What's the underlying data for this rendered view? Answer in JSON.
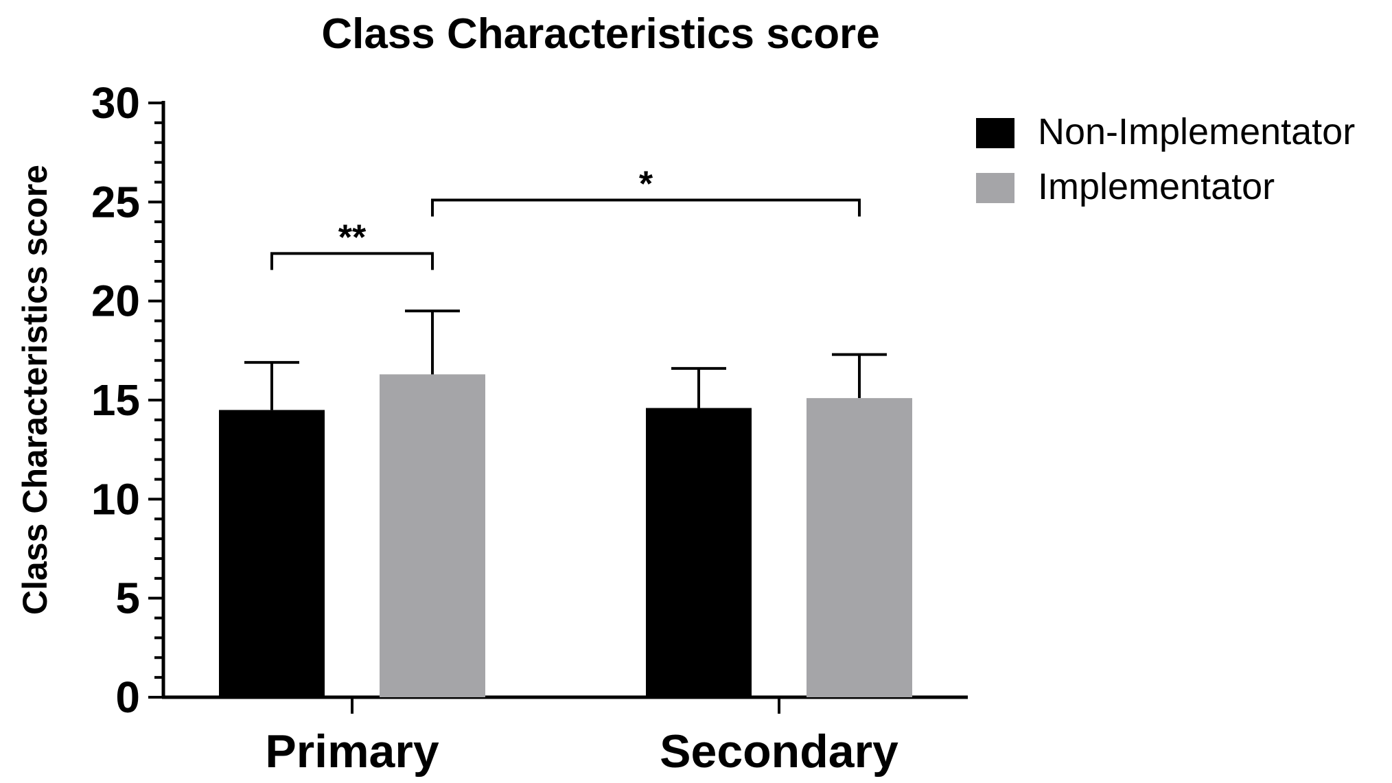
{
  "chart_data": {
    "type": "bar",
    "title": "Class Characteristics score",
    "xlabel": "",
    "ylabel": "Class Characteristics score",
    "ylim": [
      0,
      30
    ],
    "yticks": [
      "0",
      "5",
      "10",
      "15",
      "20",
      "25",
      "30"
    ],
    "categories": [
      "Primary",
      "Secondary"
    ],
    "series": [
      {
        "name": "Non-Implementator",
        "color": "#000000",
        "values": [
          14.5,
          14.6
        ],
        "errors": [
          2.4,
          2.0
        ]
      },
      {
        "name": "Implementator",
        "color": "#a5a5a8",
        "values": [
          16.3,
          15.1
        ],
        "errors": [
          3.2,
          2.2
        ]
      }
    ],
    "annotations": [
      {
        "label": "**",
        "from": "Primary / Non-Implementator",
        "to": "Primary / Implementator",
        "y": 22.4
      },
      {
        "label": "*",
        "from": "Primary / Implementator",
        "to": "Secondary / Implementator",
        "y": 25.1
      }
    ],
    "legend": "top-right",
    "grid": false
  }
}
